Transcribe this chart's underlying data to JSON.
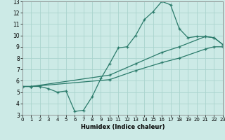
{
  "line1_x": [
    0,
    1,
    2,
    3,
    4,
    5,
    6,
    7,
    8,
    9,
    10,
    11,
    12,
    13,
    14,
    15,
    16,
    17,
    18,
    19,
    20,
    21,
    22,
    23
  ],
  "line1_y": [
    5.5,
    5.5,
    5.5,
    5.3,
    5.0,
    5.1,
    3.3,
    3.4,
    4.6,
    6.2,
    7.5,
    8.9,
    9.0,
    10.0,
    11.4,
    12.1,
    13.0,
    12.7,
    10.6,
    9.8,
    9.9,
    9.9,
    9.8,
    9.2
  ],
  "line2_x": [
    0,
    1,
    10,
    13,
    16,
    18,
    21,
    22,
    23
  ],
  "line2_y": [
    5.5,
    5.5,
    6.5,
    7.5,
    8.5,
    9.0,
    9.9,
    9.8,
    9.2
  ],
  "line3_x": [
    0,
    1,
    10,
    13,
    16,
    18,
    21,
    22,
    23
  ],
  "line3_y": [
    5.5,
    5.5,
    6.1,
    6.9,
    7.6,
    8.0,
    8.8,
    9.0,
    9.0
  ],
  "line_color": "#2a7a6a",
  "bg_color": "#cceae6",
  "grid_color": "#aad4ce",
  "xlabel": "Humidex (Indice chaleur)",
  "xlim": [
    0,
    23
  ],
  "ylim": [
    3,
    13
  ],
  "xticks": [
    0,
    1,
    2,
    3,
    4,
    5,
    6,
    7,
    8,
    9,
    10,
    11,
    12,
    13,
    14,
    15,
    16,
    17,
    18,
    19,
    20,
    21,
    22,
    23
  ],
  "yticks": [
    3,
    4,
    5,
    6,
    7,
    8,
    9,
    10,
    11,
    12,
    13
  ]
}
